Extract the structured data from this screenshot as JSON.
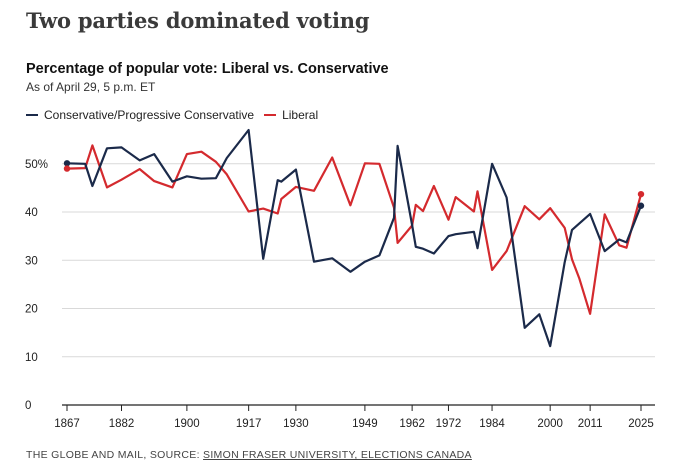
{
  "headline": "Two parties dominated voting",
  "footer": {
    "prefix": "THE GLOBE AND MAIL, SOURCE: ",
    "source": "SIMON FRASER UNIVERSITY, ELECTIONS CANADA"
  },
  "chart_data": {
    "type": "line",
    "title": "Percentage of popular vote: Liberal vs. Conservative",
    "subtitle": "As of April 29, 5 p.m. ET",
    "xlabel": "",
    "ylabel": "",
    "xlim": [
      1867,
      2025
    ],
    "ylim": [
      0,
      57
    ],
    "grid": true,
    "legend": "top-left",
    "x_ticks": [
      1867,
      1882,
      1900,
      1917,
      1930,
      1949,
      1962,
      1972,
      1984,
      2000,
      2011,
      2025
    ],
    "y_ticks": [
      {
        "value": 0,
        "label": "0"
      },
      {
        "value": 10,
        "label": "10"
      },
      {
        "value": 20,
        "label": "20"
      },
      {
        "value": 30,
        "label": "30"
      },
      {
        "value": 40,
        "label": "40"
      },
      {
        "value": 50,
        "label": "50%"
      }
    ],
    "x": [
      1867,
      1872,
      1874,
      1878,
      1882,
      1887,
      1891,
      1896,
      1900,
      1904,
      1908,
      1911,
      1917,
      1921,
      1925,
      1926,
      1930,
      1935,
      1940,
      1945,
      1949,
      1953,
      1957,
      1958,
      1962,
      1963,
      1965,
      1968,
      1972,
      1974,
      1979,
      1980,
      1984,
      1988,
      1993,
      1997,
      2000,
      2004,
      2006,
      2008,
      2011,
      2015,
      2019,
      2021,
      2025
    ],
    "series": [
      {
        "name": "Conservative/Progressive Conservative",
        "color": "#1b2a4a",
        "values": [
          50.1,
          50.0,
          45.4,
          53.2,
          53.4,
          50.7,
          52.0,
          46.3,
          47.4,
          46.9,
          47.0,
          51.2,
          57.0,
          30.3,
          46.6,
          46.3,
          48.8,
          29.7,
          30.4,
          27.6,
          29.7,
          31.0,
          38.8,
          53.7,
          37.3,
          32.8,
          32.4,
          31.4,
          35.0,
          35.4,
          35.9,
          32.5,
          50.0,
          43.0,
          16.0,
          18.8,
          12.2,
          29.6,
          36.3,
          37.6,
          39.6,
          31.9,
          34.3,
          33.7,
          41.3
        ]
      },
      {
        "name": "Liberal",
        "color": "#d42a2e",
        "values": [
          49.0,
          49.1,
          53.8,
          45.1,
          46.7,
          48.9,
          46.4,
          45.1,
          52.0,
          52.5,
          50.4,
          47.8,
          40.1,
          40.7,
          39.7,
          42.7,
          45.2,
          44.4,
          51.3,
          41.4,
          50.1,
          50.0,
          40.9,
          33.6,
          37.2,
          41.5,
          40.2,
          45.4,
          38.4,
          43.1,
          40.1,
          44.3,
          28.0,
          31.9,
          41.2,
          38.5,
          40.8,
          36.7,
          30.2,
          26.3,
          18.9,
          39.5,
          33.1,
          32.6,
          43.7
        ]
      }
    ]
  }
}
